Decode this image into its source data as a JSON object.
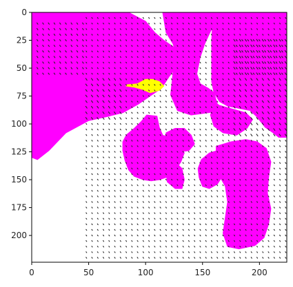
{
  "chart_data": {
    "type": "heatmap",
    "title": "",
    "xlabel": "",
    "ylabel": "",
    "xlim": [
      0,
      224
    ],
    "ylim": [
      224,
      0
    ],
    "x_ticks": [
      0,
      50,
      100,
      150,
      200
    ],
    "y_ticks": [
      0,
      25,
      50,
      75,
      100,
      125,
      150,
      175,
      200
    ],
    "grid": false,
    "colors": {
      "background": "#ffffff",
      "mask": "#ff00ff",
      "highlight": "#ffff00",
      "vectors": "#222222"
    },
    "regions": [
      {
        "name": "",
        "color": "#ff00ff",
        "points": [
          [
            0,
            0
          ],
          [
            85,
            0
          ],
          [
            100,
            8
          ],
          [
            108,
            18
          ],
          [
            116,
            25
          ],
          [
            126,
            32
          ],
          [
            130,
            38
          ],
          [
            128,
            48
          ],
          [
            121,
            57
          ],
          [
            114,
            68
          ],
          [
            104,
            75
          ],
          [
            94,
            82
          ],
          [
            80,
            90
          ],
          [
            68,
            93
          ],
          [
            50,
            97
          ],
          [
            30,
            108
          ],
          [
            15,
            124
          ],
          [
            5,
            132
          ],
          [
            0,
            130
          ]
        ]
      },
      {
        "name": "",
        "color": "#ff00ff",
        "points": [
          [
            160,
            0
          ],
          [
            224,
            0
          ],
          [
            224,
            112
          ],
          [
            217,
            112
          ],
          [
            212,
            108
          ],
          [
            205,
            103
          ],
          [
            198,
            94
          ],
          [
            192,
            88
          ],
          [
            182,
            86
          ],
          [
            172,
            84
          ],
          [
            165,
            80
          ],
          [
            160,
            72
          ],
          [
            158,
            62
          ],
          [
            158,
            44
          ],
          [
            158,
            25
          ],
          [
            159,
            8
          ]
        ]
      },
      {
        "name": "",
        "color": "#ff00ff",
        "points": [
          [
            115,
            0
          ],
          [
            162,
            0
          ],
          [
            162,
            8
          ],
          [
            157,
            17
          ],
          [
            152,
            28
          ],
          [
            148,
            40
          ],
          [
            145,
            55
          ],
          [
            148,
            64
          ],
          [
            155,
            68
          ],
          [
            160,
            72
          ],
          [
            163,
            82
          ],
          [
            170,
            88
          ],
          [
            155,
            90
          ],
          [
            140,
            92
          ],
          [
            128,
            88
          ],
          [
            122,
            74
          ],
          [
            124,
            55
          ],
          [
            128,
            40
          ],
          [
            124,
            28
          ],
          [
            118,
            18
          ]
        ]
      },
      {
        "name": "",
        "color": "#ff00ff",
        "points": [
          [
            160,
            82
          ],
          [
            174,
            86
          ],
          [
            188,
            90
          ],
          [
            194,
            96
          ],
          [
            189,
            104
          ],
          [
            180,
            110
          ],
          [
            168,
            108
          ],
          [
            160,
            102
          ],
          [
            157,
            92
          ]
        ]
      },
      {
        "name": "",
        "color": "#ff00ff",
        "points": [
          [
            101,
            92
          ],
          [
            110,
            93
          ],
          [
            112,
            103
          ],
          [
            115,
            110
          ],
          [
            120,
            112
          ],
          [
            126,
            116
          ],
          [
            130,
            120
          ],
          [
            134,
            126
          ],
          [
            131,
            134
          ],
          [
            127,
            140
          ],
          [
            123,
            144
          ],
          [
            118,
            148
          ],
          [
            112,
            150
          ],
          [
            105,
            151
          ],
          [
            98,
            150
          ],
          [
            90,
            147
          ],
          [
            85,
            141
          ],
          [
            82,
            133
          ],
          [
            80,
            124
          ],
          [
            80,
            116
          ],
          [
            83,
            110
          ],
          [
            90,
            104
          ],
          [
            96,
            98
          ]
        ]
      },
      {
        "name": "",
        "color": "#ff00ff",
        "points": [
          [
            118,
            108
          ],
          [
            126,
            104
          ],
          [
            134,
            104
          ],
          [
            140,
            110
          ],
          [
            143,
            118
          ],
          [
            138,
            124
          ],
          [
            130,
            125
          ],
          [
            122,
            123
          ],
          [
            116,
            117
          ]
        ]
      },
      {
        "name": "",
        "color": "#ff00ff",
        "points": [
          [
            120,
            138
          ],
          [
            126,
            134
          ],
          [
            132,
            140
          ],
          [
            134,
            150
          ],
          [
            132,
            158
          ],
          [
            126,
            158
          ],
          [
            119,
            152
          ],
          [
            118,
            144
          ]
        ]
      },
      {
        "name": "",
        "color": "#ff00ff",
        "points": [
          [
            149,
            132
          ],
          [
            156,
            126
          ],
          [
            163,
            124
          ],
          [
            168,
            128
          ],
          [
            170,
            136
          ],
          [
            168,
            146
          ],
          [
            163,
            154
          ],
          [
            156,
            158
          ],
          [
            150,
            156
          ],
          [
            147,
            148
          ],
          [
            146,
            140
          ]
        ]
      },
      {
        "name": "",
        "color": "#ff00ff",
        "points": [
          [
            162,
            120
          ],
          [
            175,
            116
          ],
          [
            188,
            114
          ],
          [
            198,
            116
          ],
          [
            206,
            122
          ],
          [
            210,
            134
          ],
          [
            208,
            148
          ],
          [
            207,
            162
          ],
          [
            210,
            176
          ],
          [
            208,
            190
          ],
          [
            204,
            202
          ],
          [
            196,
            209
          ],
          [
            182,
            212
          ],
          [
            172,
            210
          ],
          [
            168,
            198
          ],
          [
            170,
            184
          ],
          [
            172,
            170
          ],
          [
            170,
            156
          ],
          [
            164,
            145
          ],
          [
            162,
            132
          ]
        ]
      },
      {
        "name": "",
        "color": "#ffff00",
        "points": [
          [
            83,
            65
          ],
          [
            93,
            64
          ],
          [
            100,
            60
          ],
          [
            106,
            60
          ],
          [
            112,
            62
          ],
          [
            116,
            66
          ],
          [
            112,
            70
          ],
          [
            104,
            72
          ],
          [
            97,
            69
          ],
          [
            90,
            67
          ],
          [
            83,
            66
          ]
        ]
      }
    ],
    "vector_field": {
      "x_spacing": 5,
      "y_spacing": 5,
      "x_range": [
        48,
        224
      ],
      "y_range": [
        5,
        224
      ],
      "upper_left_block": {
        "x_range": [
          5,
          45
        ],
        "y_range": [
          10,
          55
        ]
      },
      "upper_right_block": {
        "x_range": [
          180,
          224
        ],
        "y_range": [
          25,
          55
        ]
      },
      "strong_zone": {
        "x_range": [
          48,
          82
        ],
        "y_range": [
          58,
          95
        ]
      },
      "strong_zone_right": {
        "x_range": [
          178,
          224
        ],
        "y_range": [
          25,
          110
        ]
      }
    }
  }
}
